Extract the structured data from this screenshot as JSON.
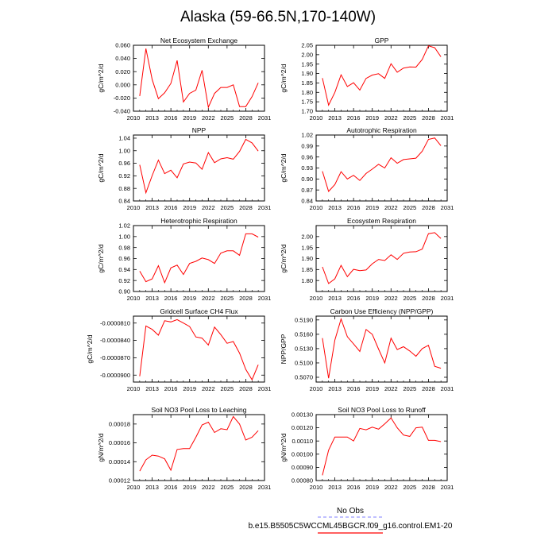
{
  "page": {
    "title": "Alaska (59-66.5N,170-140W)",
    "line_color": "#ff0000",
    "obs_color": "#9999ff"
  },
  "legend": {
    "obs_label": "No Obs",
    "model_label": "b.e15.B5505C5WCCML45BGCR.f09_g16.control.EM1-20"
  },
  "chart_data": [
    {
      "type": "line",
      "title": "Net Ecosystem Exchange",
      "ylabel": "gC/m^2/d",
      "xlim": [
        2010,
        2031
      ],
      "ylim": [
        -0.04,
        0.06
      ],
      "xticks": [
        "2010",
        "2013",
        "2016",
        "2019",
        "2022",
        "2025",
        "2028",
        "2031"
      ],
      "yticks": [
        "-0.040",
        "-0.020",
        "0.000",
        "0.020",
        "0.040",
        "0.060"
      ],
      "x": [
        2011,
        2012,
        2013,
        2014,
        2015,
        2016,
        2017,
        2018,
        2019,
        2020,
        2021,
        2022,
        2023,
        2024,
        2025,
        2026,
        2027,
        2028,
        2029,
        2030
      ],
      "y": [
        -0.017,
        0.055,
        0.008,
        -0.021,
        -0.012,
        0.002,
        0.037,
        -0.026,
        -0.013,
        -0.008,
        0.022,
        -0.034,
        -0.013,
        -0.004,
        -0.004,
        0.0,
        -0.033,
        -0.033,
        -0.018,
        0.003
      ]
    },
    {
      "type": "line",
      "title": "GPP",
      "ylabel": "gC/m^2/d",
      "xlim": [
        2010,
        2031
      ],
      "ylim": [
        1.7,
        2.05
      ],
      "xticks": [
        "2010",
        "2013",
        "2016",
        "2019",
        "2022",
        "2025",
        "2028",
        "2031"
      ],
      "yticks": [
        "1.70",
        "1.75",
        "1.80",
        "1.85",
        "1.90",
        "1.95",
        "2.00",
        "2.05"
      ],
      "x": [
        2011,
        2012,
        2013,
        2014,
        2015,
        2016,
        2017,
        2018,
        2019,
        2020,
        2021,
        2022,
        2023,
        2024,
        2025,
        2026,
        2027,
        2028,
        2029,
        2030
      ],
      "y": [
        1.876,
        1.732,
        1.8,
        1.893,
        1.831,
        1.851,
        1.812,
        1.874,
        1.892,
        1.899,
        1.874,
        1.952,
        1.907,
        1.929,
        1.935,
        1.934,
        1.975,
        2.047,
        2.037,
        1.989
      ]
    },
    {
      "type": "line",
      "title": "NPP",
      "ylabel": "gC/m^2/d",
      "xlim": [
        2010,
        2031
      ],
      "ylim": [
        0.84,
        1.05
      ],
      "xticks": [
        "2010",
        "2013",
        "2016",
        "2019",
        "2022",
        "2025",
        "2028",
        "2031"
      ],
      "yticks": [
        "0.84",
        "0.88",
        "0.92",
        "0.96",
        "1.00",
        "1.04"
      ],
      "x": [
        2011,
        2012,
        2013,
        2014,
        2015,
        2016,
        2017,
        2018,
        2019,
        2020,
        2021,
        2022,
        2023,
        2024,
        2025,
        2026,
        2027,
        2028,
        2029,
        2030
      ],
      "y": [
        0.955,
        0.866,
        0.921,
        0.97,
        0.927,
        0.938,
        0.914,
        0.958,
        0.964,
        0.961,
        0.941,
        0.994,
        0.962,
        0.974,
        0.978,
        0.973,
        0.998,
        1.036,
        1.025,
        0.999
      ]
    },
    {
      "type": "line",
      "title": "Autotrophic Respiration",
      "ylabel": "gC/m^2/d",
      "xlim": [
        2010,
        2031
      ],
      "ylim": [
        0.84,
        1.02
      ],
      "xticks": [
        "2010",
        "2013",
        "2016",
        "2019",
        "2022",
        "2025",
        "2028",
        "2031"
      ],
      "yticks": [
        "0.84",
        "0.87",
        "0.90",
        "0.93",
        "0.96",
        "0.99",
        "1.02"
      ],
      "x": [
        2011,
        2012,
        2013,
        2014,
        2015,
        2016,
        2017,
        2018,
        2019,
        2020,
        2021,
        2022,
        2023,
        2024,
        2025,
        2026,
        2027,
        2028,
        2029,
        2030
      ],
      "y": [
        0.921,
        0.866,
        0.885,
        0.92,
        0.9,
        0.91,
        0.896,
        0.915,
        0.927,
        0.94,
        0.93,
        0.958,
        0.943,
        0.953,
        0.955,
        0.957,
        0.976,
        1.008,
        1.012,
        0.991
      ]
    },
    {
      "type": "line",
      "title": "Heterotrophic Respiration",
      "ylabel": "gC/m^2/d",
      "xlim": [
        2010,
        2031
      ],
      "ylim": [
        0.9,
        1.02
      ],
      "xticks": [
        "2010",
        "2013",
        "2016",
        "2019",
        "2022",
        "2025",
        "2028",
        "2031"
      ],
      "yticks": [
        "0.90",
        "0.92",
        "0.94",
        "0.96",
        "0.98",
        "1.00",
        "1.02"
      ],
      "x": [
        2011,
        2012,
        2013,
        2014,
        2015,
        2016,
        2017,
        2018,
        2019,
        2020,
        2021,
        2022,
        2023,
        2024,
        2025,
        2026,
        2027,
        2028,
        2029,
        2030
      ],
      "y": [
        0.937,
        0.918,
        0.923,
        0.947,
        0.916,
        0.943,
        0.948,
        0.931,
        0.951,
        0.955,
        0.961,
        0.958,
        0.951,
        0.97,
        0.974,
        0.974,
        0.966,
        1.005,
        1.005,
        0.999
      ]
    },
    {
      "type": "line",
      "title": "Ecosystem Respiration",
      "ylabel": "gC/m^2/d",
      "xlim": [
        2010,
        2031
      ],
      "ylim": [
        1.75,
        2.05
      ],
      "xticks": [
        "2010",
        "2013",
        "2016",
        "2019",
        "2022",
        "2025",
        "2028",
        "2031"
      ],
      "yticks": [
        "1.80",
        "1.85",
        "1.90",
        "1.95",
        "2.00"
      ],
      "x": [
        2011,
        2012,
        2013,
        2014,
        2015,
        2016,
        2017,
        2018,
        2019,
        2020,
        2021,
        2022,
        2023,
        2024,
        2025,
        2026,
        2027,
        2028,
        2029,
        2030
      ],
      "y": [
        1.862,
        1.786,
        1.808,
        1.869,
        1.818,
        1.851,
        1.845,
        1.848,
        1.876,
        1.896,
        1.891,
        1.917,
        1.896,
        1.924,
        1.93,
        1.931,
        1.943,
        2.013,
        2.018,
        1.991
      ]
    },
    {
      "type": "line",
      "title": "Gridcell Surface CH4 Flux",
      "ylabel": "gC/m^2/d",
      "xlim": [
        2010,
        2031
      ],
      "ylim": [
        -9.12e-05,
        -7.98e-05
      ],
      "xticks": [
        "2010",
        "2013",
        "2016",
        "2019",
        "2022",
        "2025",
        "2028",
        "2031"
      ],
      "yticks": [
        "-0.0000810",
        "-0.0000840",
        "-0.0000870",
        "-0.0000900"
      ],
      "x": [
        2011,
        2012,
        2013,
        2014,
        2015,
        2016,
        2017,
        2018,
        2019,
        2020,
        2021,
        2022,
        2023,
        2024,
        2025,
        2026,
        2027,
        2028,
        2029,
        2030
      ],
      "y": [
        -9.02e-05,
        -8.15e-05,
        -8.21e-05,
        -8.31e-05,
        -8.06e-05,
        -8.08e-05,
        -8.04e-05,
        -8.1e-05,
        -8.16e-05,
        -8.34e-05,
        -8.36e-05,
        -8.48e-05,
        -8.17e-05,
        -8.3e-05,
        -8.45e-05,
        -8.42e-05,
        -8.62e-05,
        -8.9e-05,
        -9.08e-05,
        -8.82e-05
      ]
    },
    {
      "type": "line",
      "title": "Carbon Use Efficiency (NPP/GPP)",
      "ylabel": "NPP/GPP",
      "xlim": [
        2010,
        2031
      ],
      "ylim": [
        0.506,
        0.5198
      ],
      "xticks": [
        "2010",
        "2013",
        "2016",
        "2019",
        "2022",
        "2025",
        "2028",
        "2031"
      ],
      "yticks": [
        "0.5070",
        "0.5100",
        "0.5130",
        "0.5160",
        "0.5190"
      ],
      "x": [
        2011,
        2012,
        2013,
        2014,
        2015,
        2016,
        2017,
        2018,
        2019,
        2020,
        2021,
        2022,
        2023,
        2024,
        2025,
        2026,
        2027,
        2028,
        2029,
        2030
      ],
      "y": [
        0.5152,
        0.5068,
        0.5148,
        0.5192,
        0.5155,
        0.514,
        0.5124,
        0.517,
        0.516,
        0.5129,
        0.51,
        0.5152,
        0.5128,
        0.5134,
        0.5125,
        0.5114,
        0.513,
        0.5137,
        0.5093,
        0.5089
      ]
    },
    {
      "type": "line",
      "title": "Soil NO3 Pool Loss to Leaching",
      "ylabel": "gN/m^2/d",
      "xlim": [
        2010,
        2031
      ],
      "ylim": [
        0.00012,
        0.00019
      ],
      "xticks": [
        "2010",
        "2013",
        "2016",
        "2019",
        "2022",
        "2025",
        "2028",
        "2031"
      ],
      "yticks": [
        "0.00012",
        "0.00014",
        "0.00016",
        "0.00018"
      ],
      "x": [
        2011,
        2012,
        2013,
        2014,
        2015,
        2016,
        2017,
        2018,
        2019,
        2020,
        2021,
        2022,
        2023,
        2024,
        2025,
        2026,
        2027,
        2028,
        2029,
        2030
      ],
      "y": [
        0.00013,
        0.000142,
        0.000147,
        0.000146,
        0.000143,
        0.000131,
        0.000153,
        0.000154,
        0.000154,
        0.000166,
        0.000179,
        0.000182,
        0.000171,
        0.000175,
        0.000174,
        0.000188,
        0.00018,
        0.000163,
        0.000166,
        0.000173
      ]
    },
    {
      "type": "line",
      "title": "Soil NO3 Pool Loss to Runoff",
      "ylabel": "gN/m^2/d",
      "xlim": [
        2010,
        2031
      ],
      "ylim": [
        0.0008,
        0.0013
      ],
      "xticks": [
        "2010",
        "2013",
        "2016",
        "2019",
        "2022",
        "2025",
        "2028",
        "2031"
      ],
      "yticks": [
        "0.00080",
        "0.00090",
        "0.00100",
        "0.00110",
        "0.00120",
        "0.00130"
      ],
      "x": [
        2011,
        2012,
        2013,
        2014,
        2015,
        2016,
        2017,
        2018,
        2019,
        2020,
        2021,
        2022,
        2023,
        2024,
        2025,
        2026,
        2027,
        2028,
        2029,
        2030
      ],
      "y": [
        0.00084,
        0.00103,
        0.00113,
        0.00113,
        0.00113,
        0.0011,
        0.001195,
        0.001185,
        0.001205,
        0.00119,
        0.00123,
        0.001275,
        0.0012,
        0.001145,
        0.001135,
        0.0012,
        0.001205,
        0.001105,
        0.001105,
        0.001095
      ]
    }
  ]
}
